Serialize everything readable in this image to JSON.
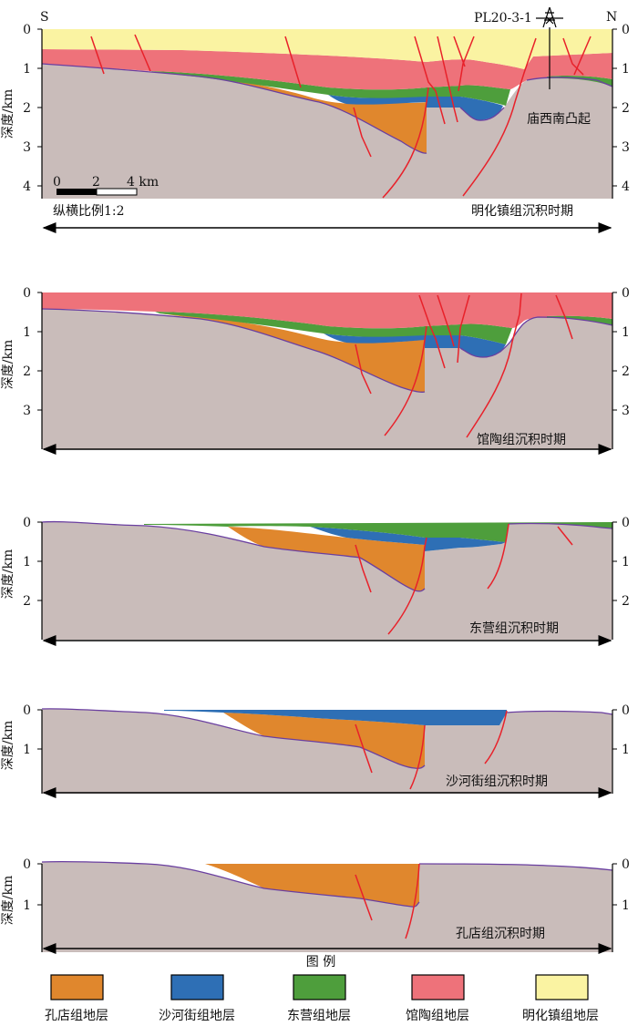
{
  "orientation": {
    "south": "S",
    "north": "N"
  },
  "well": {
    "name": "PL20-3-1"
  },
  "structure_label": "庙西南凸起",
  "scale_bar": {
    "ticks": [
      "0",
      "2",
      "4 km"
    ],
    "ratio": "纵横比例1:2"
  },
  "y_axis_label": "深度/km",
  "panels": [
    {
      "label": "明化镇组沉积时期",
      "ticks": [
        "0",
        "1",
        "2",
        "3",
        "4"
      ]
    },
    {
      "label": "馆陶组沉积时期",
      "ticks": [
        "0",
        "1",
        "2",
        "3"
      ]
    },
    {
      "label": "东营组沉积时期",
      "ticks": [
        "0",
        "1",
        "2"
      ]
    },
    {
      "label": "沙河街组沉积时期",
      "ticks": [
        "0",
        "1"
      ]
    },
    {
      "label": "孔店组沉积时期",
      "ticks": [
        "0",
        "1"
      ]
    }
  ],
  "legend": {
    "title": "图  例",
    "items": [
      {
        "label": "孔店组地层",
        "color": "#E0872D"
      },
      {
        "label": "沙河街组地层",
        "color": "#2E6FB5"
      },
      {
        "label": "东营组地层",
        "color": "#4E9E3C"
      },
      {
        "label": "馆陶组地层",
        "color": "#EE727A"
      },
      {
        "label": "明化镇组地层",
        "color": "#FAF3A2"
      }
    ]
  },
  "colors": {
    "basement": "#C9BCBA",
    "fault": "#E8212A",
    "top_line": "#6A3FA0"
  }
}
